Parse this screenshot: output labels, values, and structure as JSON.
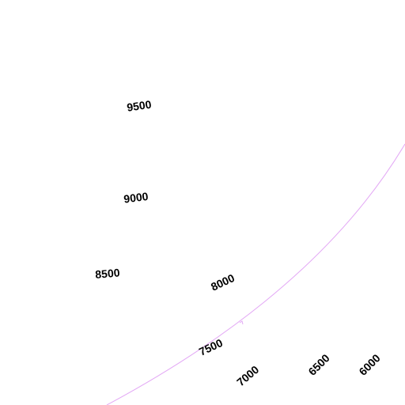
{
  "contour_labels": [
    "9500",
    "9000",
    "8500",
    "8000",
    "7500",
    "7000",
    "6500",
    "6000"
  ]
}
